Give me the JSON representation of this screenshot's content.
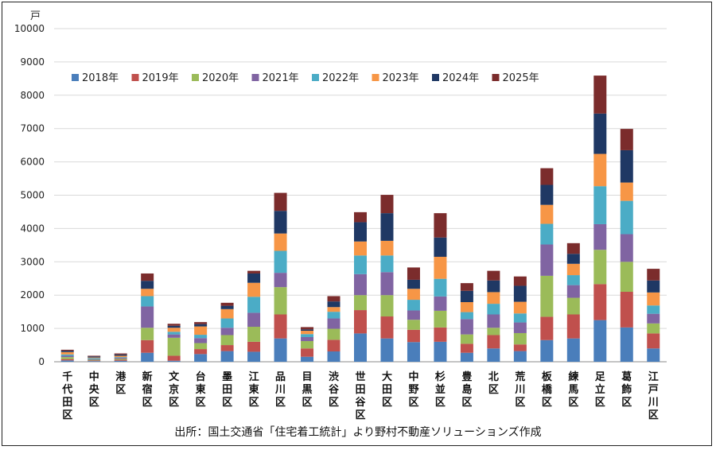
{
  "chart_data": {
    "type": "bar",
    "stacked": true,
    "unit": "戸",
    "ylim": [
      0,
      10000
    ],
    "yticks": [
      "0",
      "1000",
      "2000",
      "3000",
      "4000",
      "5000",
      "6000",
      "7000",
      "8000",
      "9000",
      "10000"
    ],
    "source": "出所：国土交通省「住宅着工統計」より野村不動産ソリューションズ作成",
    "legend_position": "top-left",
    "categories": [
      "千代田区",
      "中央区",
      "港区",
      "新宿区",
      "文京区",
      "台東区",
      "墨田区",
      "江東区",
      "品川区",
      "目黒区",
      "渋谷区",
      "世田谷区",
      "大田区",
      "中野区",
      "杉並区",
      "豊島区",
      "北区",
      "荒川区",
      "板橋区",
      "練馬区",
      "足立区",
      "葛飾区",
      "江戸川区"
    ],
    "series": [
      {
        "name": "2018年",
        "color": "#4a7ebb",
        "values": [
          40,
          20,
          30,
          270,
          30,
          230,
          320,
          300,
          700,
          150,
          310,
          850,
          700,
          590,
          600,
          270,
          400,
          320,
          650,
          700,
          1250,
          1030,
          400
        ]
      },
      {
        "name": "2019年",
        "color": "#c0504d",
        "values": [
          40,
          20,
          30,
          380,
          150,
          150,
          180,
          300,
          720,
          250,
          350,
          700,
          660,
          370,
          430,
          270,
          400,
          200,
          700,
          720,
          1080,
          1070,
          450
        ]
      },
      {
        "name": "2020年",
        "color": "#9bbb59",
        "values": [
          60,
          20,
          30,
          370,
          540,
          180,
          300,
          450,
          820,
          220,
          330,
          450,
          640,
          300,
          500,
          280,
          220,
          340,
          1230,
          500,
          1030,
          900,
          300
        ]
      },
      {
        "name": "2021年",
        "color": "#8064a2",
        "values": [
          40,
          20,
          30,
          640,
          100,
          150,
          220,
          420,
          430,
          120,
          310,
          630,
          690,
          280,
          430,
          460,
          400,
          320,
          940,
          380,
          770,
          830,
          290
        ]
      },
      {
        "name": "2022年",
        "color": "#4bacc6",
        "values": [
          40,
          30,
          20,
          310,
          80,
          100,
          280,
          480,
          660,
          90,
          200,
          560,
          500,
          320,
          530,
          210,
          320,
          270,
          620,
          300,
          1140,
          1000,
          250
        ]
      },
      {
        "name": "2023年",
        "color": "#f79646",
        "values": [
          70,
          20,
          40,
          220,
          120,
          250,
          280,
          420,
          520,
          100,
          140,
          420,
          440,
          330,
          660,
          300,
          350,
          350,
          570,
          340,
          970,
          550,
          390
        ]
      },
      {
        "name": "2024年",
        "color": "#1f3864",
        "values": [
          40,
          30,
          40,
          240,
          60,
          70,
          100,
          280,
          680,
          40,
          170,
          580,
          830,
          270,
          580,
          340,
          350,
          480,
          600,
          300,
          1210,
          970,
          360
        ]
      },
      {
        "name": "2025年",
        "color": "#7b2c2c",
        "values": [
          30,
          20,
          30,
          220,
          60,
          60,
          90,
          80,
          540,
          70,
          160,
          300,
          550,
          370,
          730,
          230,
          290,
          280,
          500,
          320,
          1140,
          640,
          350
        ]
      }
    ]
  }
}
